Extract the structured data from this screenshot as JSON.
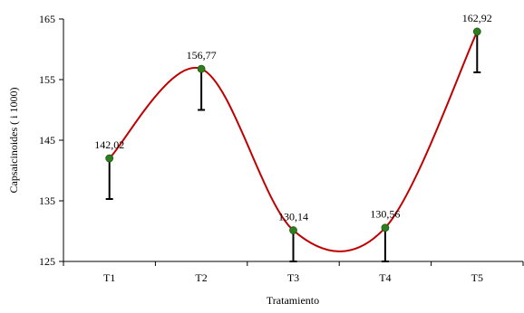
{
  "chart_data": {
    "type": "line",
    "categories": [
      "T1",
      "T2",
      "T3",
      "T4",
      "T5"
    ],
    "series": [
      {
        "values": [
          142.02,
          156.77,
          130.14,
          130.56,
          162.92
        ],
        "labels": [
          "142,02",
          "156,77",
          "130,14",
          "130,56",
          "162,92"
        ],
        "error_lower": [
          135.3,
          150.0,
          125.0,
          125.0,
          156.2
        ]
      }
    ],
    "xlabel": "Tratamiento",
    "ylabel": "Capsaicinoides ( i 1000)",
    "ylim": [
      125,
      165
    ],
    "yticks": [
      125,
      135,
      145,
      155,
      165
    ],
    "grid": false,
    "smooth": true,
    "line_color": "#c00000",
    "marker_color": "#2e7d1e",
    "errorbar_color": "#000000"
  }
}
